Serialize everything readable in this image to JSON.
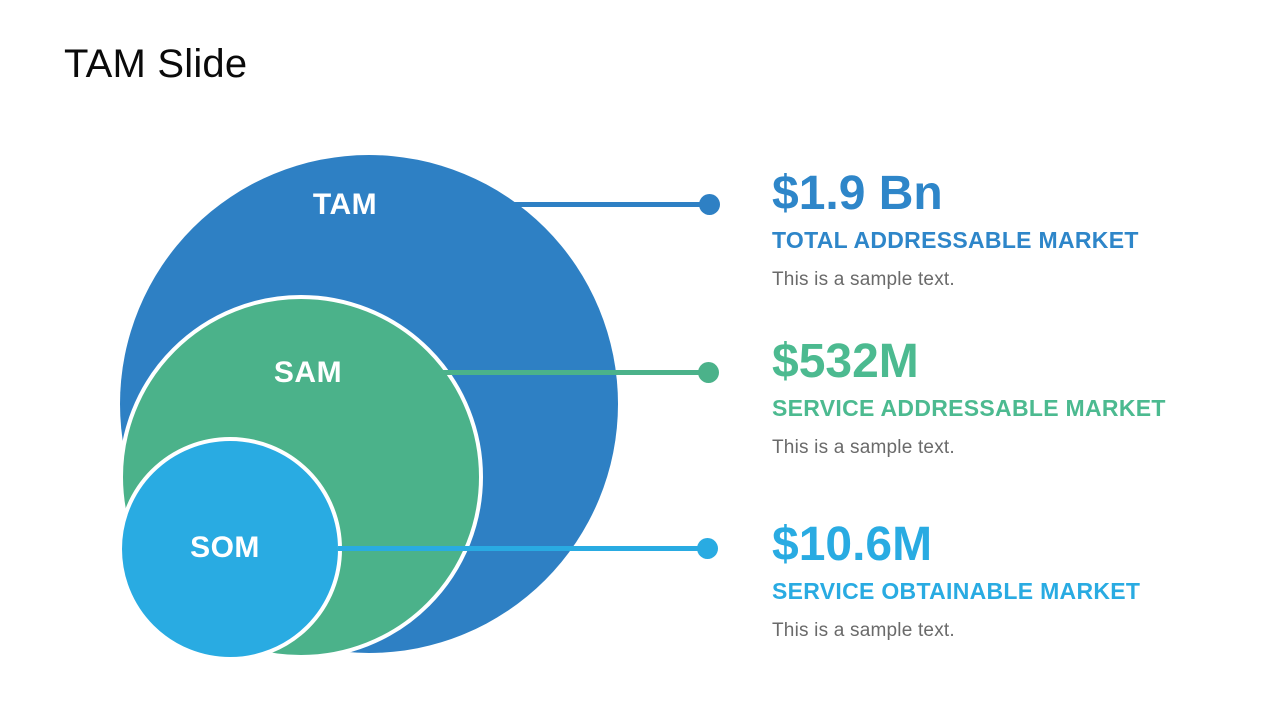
{
  "slide": {
    "title": "TAM Slide",
    "background_color": "#ffffff"
  },
  "diagram": {
    "type": "nested-circles",
    "circles": [
      {
        "id": "tam",
        "label": "TAM",
        "color": "#2e80c4",
        "label_color": "#ffffff"
      },
      {
        "id": "sam",
        "label": "SAM",
        "color": "#4bb28a",
        "label_color": "#ffffff"
      },
      {
        "id": "som",
        "label": "SOM",
        "color": "#29abe2",
        "label_color": "#ffffff"
      }
    ]
  },
  "stats": [
    {
      "value": "$1.9 Bn",
      "label": "TOTAL ADDRESSABLE MARKET",
      "description": "This is a sample text.",
      "color": "#2e86c9"
    },
    {
      "value": "$532M",
      "label": "SERVICE ADDRESSABLE MARKET",
      "description": "This is a sample text.",
      "color": "#4cba90"
    },
    {
      "value": "$10.6M",
      "label": "SERVICE OBTAINABLE MARKET",
      "description": "This is a sample text.",
      "color": "#29abe2"
    }
  ],
  "description_color": "#6a6a6a"
}
